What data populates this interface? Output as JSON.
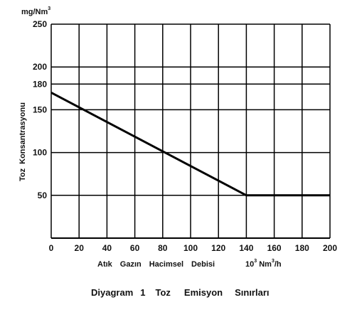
{
  "chart_data": {
    "type": "line",
    "y_unit": {
      "base": "mg/Nm",
      "sup": "3"
    },
    "ylabel_words": [
      "Toz",
      "Konsantrasyonu"
    ],
    "xlabel_words": [
      "Atık",
      "Gazın",
      "Hacimsel",
      "Debisi"
    ],
    "x_unit": {
      "base": "10",
      "sup1": "3",
      "mid": " Nm",
      "sup2": "3",
      "end": "/h"
    },
    "caption_words": [
      "Diyagram",
      "1",
      "Toz",
      "Emisyon",
      "Sınırları"
    ],
    "x_ticks": [
      "0",
      "20",
      "40",
      "60",
      "80",
      "100",
      "120",
      "140",
      "160",
      "180",
      "200"
    ],
    "y_ticks": [
      "50",
      "100",
      "150",
      "180",
      "200",
      "250"
    ],
    "xlim": [
      0,
      200
    ],
    "ylim": [
      0,
      250
    ],
    "grid": true,
    "series": [
      {
        "x": [
          0,
          140,
          200
        ],
        "y": [
          170,
          50,
          50
        ]
      }
    ]
  }
}
